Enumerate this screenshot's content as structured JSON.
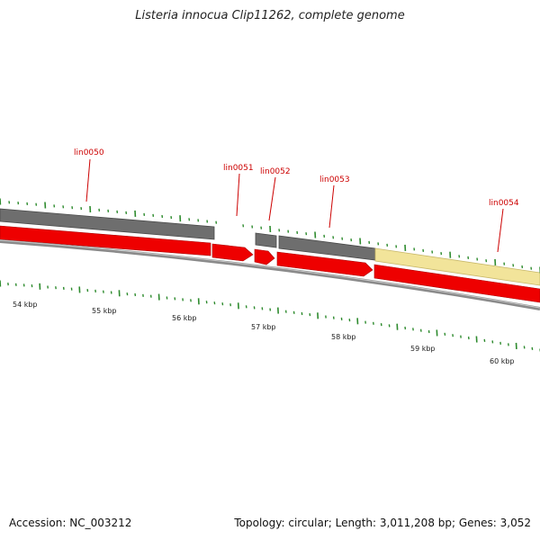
{
  "title": "Listeria innocua Clip11262, complete genome",
  "footer": {
    "accession": "Accession: NC_003212",
    "summary": "Topology: circular; Length: 3,011,208 bp; Genes: 3,052"
  },
  "colors": {
    "forward_cds": "#ee0000",
    "reverse_gene": "#6e6e6e",
    "reverse_gene_alt": "#f2e49a",
    "backbone": "#8a8a8a",
    "tick": "#2e8b2e",
    "label_leader": "#cc0000"
  },
  "genes": [
    {
      "label": "lin0050"
    },
    {
      "label": "lin0051"
    },
    {
      "label": "lin0052"
    },
    {
      "label": "lin0053"
    },
    {
      "label": "lin0054"
    }
  ],
  "scale_labels": [
    "54 kbp",
    "55 kbp",
    "56 kbp",
    "57 kbp",
    "58 kbp",
    "59 kbp",
    "60 kbp"
  ]
}
